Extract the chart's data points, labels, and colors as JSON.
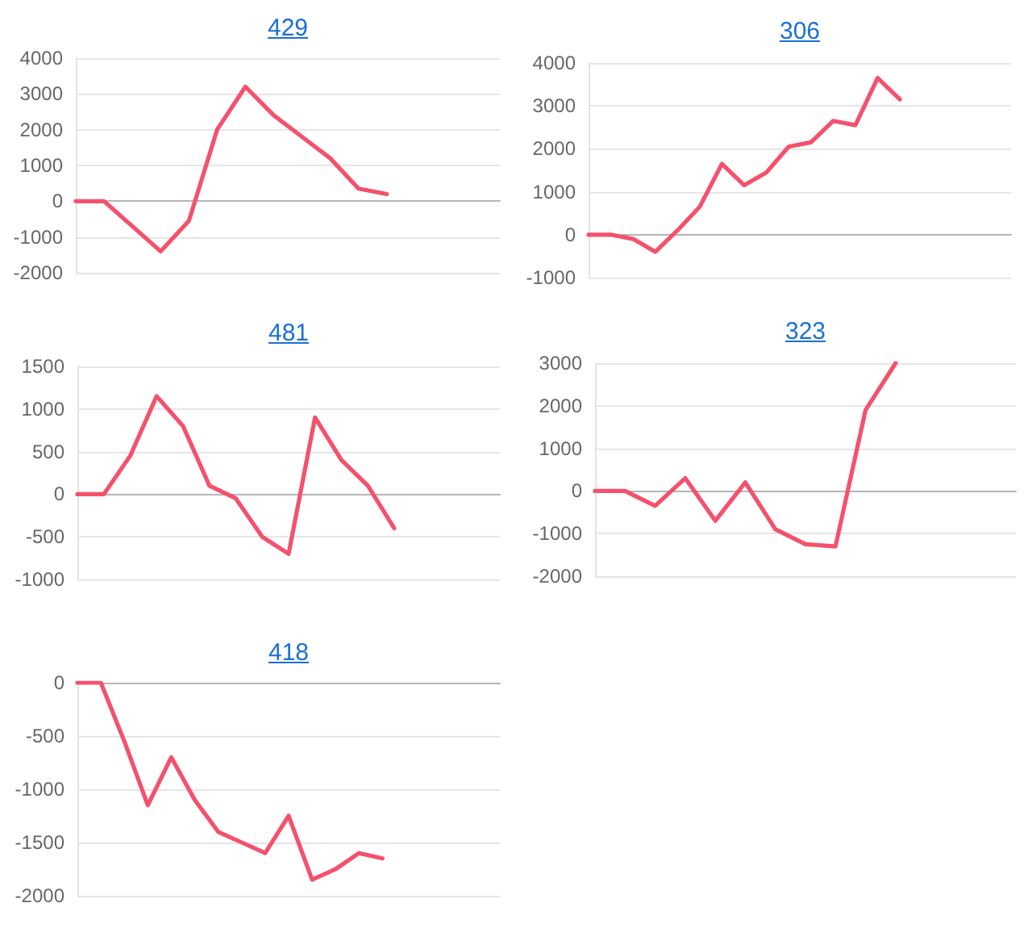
{
  "chart_data": [
    {
      "type": "line",
      "title": "429",
      "categories": [
        null,
        null,
        null,
        null,
        null,
        null,
        null,
        null,
        null,
        null,
        null,
        null,
        null,
        null,
        null,
        null
      ],
      "values": [
        0,
        0,
        -700,
        -1400,
        -550,
        2000,
        3200,
        2400,
        1800,
        1200,
        350,
        200,
        null,
        null,
        null,
        null
      ],
      "color": "#f4516c",
      "ylim": [
        -2000,
        4000
      ],
      "yticks": [
        -2000,
        -1000,
        0,
        1000,
        2000,
        3000,
        4000
      ],
      "grid": "y",
      "marker": "none",
      "line_style": "solid",
      "tick_labels": "y"
    },
    {
      "type": "line",
      "title": "306",
      "categories": [
        null,
        null,
        null,
        null,
        null,
        null,
        null,
        null,
        null,
        null,
        null,
        null,
        null,
        null,
        null,
        null,
        null,
        null,
        null,
        null
      ],
      "values": [
        0,
        0,
        -100,
        -400,
        100,
        650,
        1650,
        1150,
        1450,
        2050,
        2150,
        2650,
        2550,
        3650,
        3150,
        null,
        null,
        null,
        null,
        null
      ],
      "color": "#f4516c",
      "ylim": [
        -1000,
        4000
      ],
      "yticks": [
        -1000,
        0,
        1000,
        2000,
        3000,
        4000
      ],
      "grid": "y",
      "marker": "none",
      "line_style": "solid",
      "tick_labels": "y"
    },
    {
      "type": "line",
      "title": "481",
      "categories": [
        null,
        null,
        null,
        null,
        null,
        null,
        null,
        null,
        null,
        null,
        null,
        null,
        null,
        null,
        null,
        null,
        null
      ],
      "values": [
        0,
        0,
        450,
        1150,
        800,
        100,
        -50,
        -500,
        -700,
        900,
        400,
        100,
        -400,
        null,
        null,
        null,
        null
      ],
      "color": "#f4516c",
      "ylim": [
        -1000,
        1500
      ],
      "yticks": [
        -1000,
        -500,
        0,
        500,
        1000,
        1500
      ],
      "grid": "y",
      "marker": "none",
      "line_style": "solid",
      "tick_labels": "y"
    },
    {
      "type": "line",
      "title": "323",
      "categories": [
        null,
        null,
        null,
        null,
        null,
        null,
        null,
        null,
        null,
        null,
        null,
        null,
        null,
        null,
        null
      ],
      "values": [
        0,
        0,
        -350,
        300,
        -700,
        200,
        -900,
        -1250,
        -1300,
        1900,
        3000,
        null,
        null,
        null,
        null
      ],
      "color": "#f4516c",
      "ylim": [
        -2000,
        3000
      ],
      "yticks": [
        -2000,
        -1000,
        0,
        1000,
        2000,
        3000
      ],
      "grid": "y",
      "marker": "none",
      "line_style": "solid",
      "tick_labels": "y"
    },
    {
      "type": "line",
      "title": "418",
      "categories": [
        null,
        null,
        null,
        null,
        null,
        null,
        null,
        null,
        null,
        null,
        null,
        null,
        null,
        null,
        null,
        null,
        null,
        null,
        null
      ],
      "values": [
        0,
        0,
        -550,
        -1150,
        -700,
        -1100,
        -1400,
        -1500,
        -1600,
        -1250,
        -1850,
        -1750,
        -1600,
        -1650,
        null,
        null,
        null,
        null,
        null
      ],
      "color": "#f4516c",
      "ylim": [
        -2000,
        0
      ],
      "yticks": [
        -2000,
        -1500,
        -1000,
        -500,
        0
      ],
      "grid": "y",
      "marker": "none",
      "line_style": "solid",
      "tick_labels": "y"
    }
  ]
}
